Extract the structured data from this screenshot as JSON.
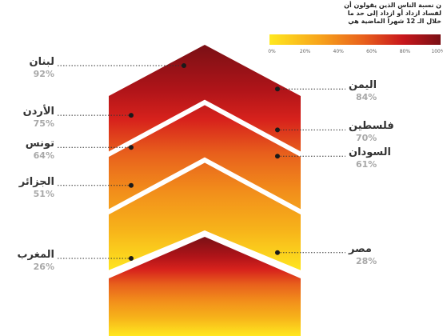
{
  "legend": {
    "title_lines": [
      "ن نسبة الناس الذين يقولون أن",
      "لفساد ازداد أو ازداد إلى حد ما",
      "خلال الـ 12 شهراً الماضية هي"
    ],
    "ticks": [
      "0%",
      "20%",
      "40%",
      "60%",
      "80%",
      "100%"
    ],
    "gradient_colors": [
      "#ffe81f",
      "#f7a21b",
      "#e8601c",
      "#c8171c",
      "#7a1015"
    ]
  },
  "chart_data": {
    "type": "bar",
    "unit": "%",
    "ylim": [
      0,
      100
    ],
    "categories": [
      "لبنان",
      "اليمن",
      "الأردن",
      "فلسطين",
      "تونس",
      "السودان",
      "الجزائر",
      "مصر",
      "المغرب"
    ],
    "values": [
      92,
      84,
      75,
      70,
      64,
      61,
      51,
      28,
      26
    ],
    "value_labels": [
      "92%",
      "84%",
      "75%",
      "70%",
      "64%",
      "61%",
      "51%",
      "28%",
      "26%"
    ],
    "sides": [
      "left",
      "right",
      "left",
      "right",
      "left",
      "right",
      "left",
      "right",
      "left"
    ]
  }
}
